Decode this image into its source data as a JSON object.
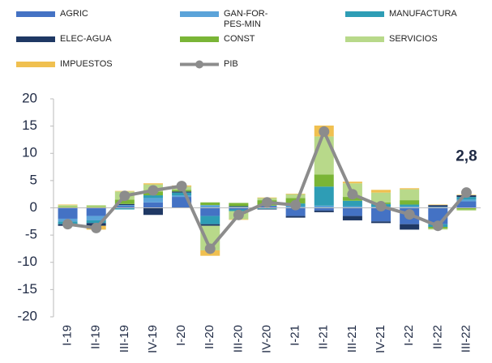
{
  "chart_data": {
    "type": "bar",
    "categories": [
      "I-19",
      "II-19",
      "III-19",
      "IV-19",
      "I-20",
      "II-20",
      "III-20",
      "IV-20",
      "I-21",
      "II-21",
      "III-21",
      "IV-21",
      "I-22",
      "II-22",
      "III-22"
    ],
    "series": [
      {
        "name": "AGRIC",
        "color": "#4472c4",
        "values": [
          -2,
          -1.5,
          0.3,
          1,
          2,
          -1.5,
          -0.3,
          0.3,
          -1.5,
          -0.5,
          -1.5,
          -2.5,
          -3,
          -3,
          1.2
        ]
      },
      {
        "name": "GAN-FOR-PES-MIN",
        "color": "#5ba3d9",
        "values": [
          -0.5,
          -0.8,
          0.2,
          0.8,
          0.3,
          0.5,
          0.2,
          0.1,
          0.3,
          0.4,
          0.3,
          0.2,
          0.3,
          0.2,
          0.3
        ]
      },
      {
        "name": "MANUFACTURA",
        "color": "#2e9db5",
        "values": [
          -0.5,
          -0.5,
          -0.3,
          0.5,
          0.5,
          -1.5,
          -0.3,
          -0.2,
          0.5,
          3.5,
          1,
          0.5,
          0.3,
          -0.5,
          0.5
        ]
      },
      {
        "name": "ELEC-AGUA",
        "color": "#1f3864",
        "values": [
          -0.3,
          -0.5,
          0.2,
          -1.3,
          0.2,
          -0.3,
          0.1,
          -0.1,
          -0.3,
          -0.3,
          -0.8,
          -0.3,
          -1,
          0.3,
          0.3
        ]
      },
      {
        "name": "CONST",
        "color": "#7ab536",
        "values": [
          0.2,
          0.2,
          0.8,
          0.7,
          0.3,
          0.5,
          0.6,
          1,
          1,
          2.2,
          0.7,
          0.3,
          0.8,
          -0.3,
          -0.3
        ]
      },
      {
        "name": "SERVICIOS",
        "color": "#b8d98a",
        "values": [
          0.3,
          0.3,
          1.5,
          1.3,
          0.6,
          -4.5,
          -1.5,
          0.4,
          0.7,
          7,
          2.5,
          1.8,
          2,
          -0.2,
          -0.2
        ]
      },
      {
        "name": "IMPUESTOS",
        "color": "#f0c050",
        "values": [
          0.1,
          -0.7,
          0.1,
          0.2,
          0.2,
          -1,
          -0.1,
          0.1,
          0.1,
          2,
          0.3,
          0.5,
          0.2,
          0.1,
          0.1
        ]
      },
      {
        "name": "PIB",
        "type": "line",
        "color": "#8c8c8c",
        "values": [
          -3,
          -3.7,
          2.2,
          3.2,
          4,
          -7.5,
          -1.3,
          1,
          0.5,
          14,
          2.5,
          0.3,
          -1.2,
          -3.3,
          2.8
        ],
        "value_labels": [
          null,
          null,
          null,
          null,
          null,
          null,
          null,
          null,
          null,
          null,
          null,
          null,
          null,
          null,
          "2,8"
        ]
      }
    ],
    "ylim": [
      -20,
      20
    ],
    "yticks": [
      -20,
      -15,
      -10,
      -5,
      0,
      5,
      10,
      15,
      20
    ]
  }
}
